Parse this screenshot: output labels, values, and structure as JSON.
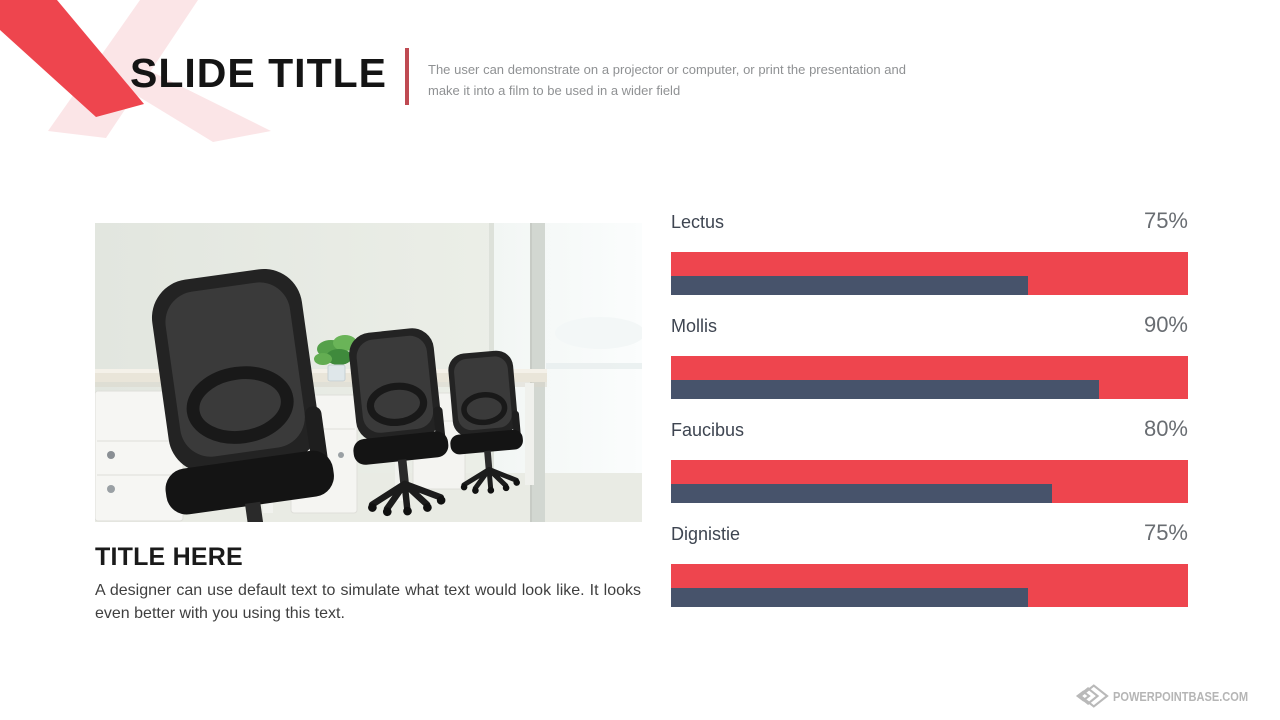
{
  "header": {
    "title": "SLIDE TITLE",
    "subtitle": "The user can demonstrate on a projector or computer, or print the presentation and make it into a film to be used in a wider field"
  },
  "left_panel": {
    "heading": "TITLE HERE",
    "body": "A designer can use default text to simulate what text would look like. It looks even better with you using this text."
  },
  "chart_data": {
    "type": "bar",
    "orientation": "horizontal",
    "categories": [
      "Lectus",
      "Mollis",
      "Faucibus",
      "Dignistie"
    ],
    "values": [
      75,
      90,
      80,
      75
    ],
    "value_labels": [
      "75%",
      "90%",
      "80%",
      "75%"
    ],
    "xlim": [
      0,
      100
    ],
    "track_color": "#ee454e",
    "bar_color": "#47536b",
    "fill_ratio_of_track": 0.92,
    "legend": "none",
    "grid": false
  },
  "footer": {
    "watermark": "POWERPOINTBASE.COM"
  },
  "colors": {
    "accent_red": "#ee454e",
    "accent_pink": "#fbe5e7",
    "bar_navy": "#47536b",
    "divider_red": "#bf4a52",
    "title_black": "#141414",
    "subtitle_gray": "#8f9193",
    "label_navy": "#3e4551",
    "value_gray": "#696d72",
    "watermark_gray": "#b5b5b5"
  }
}
